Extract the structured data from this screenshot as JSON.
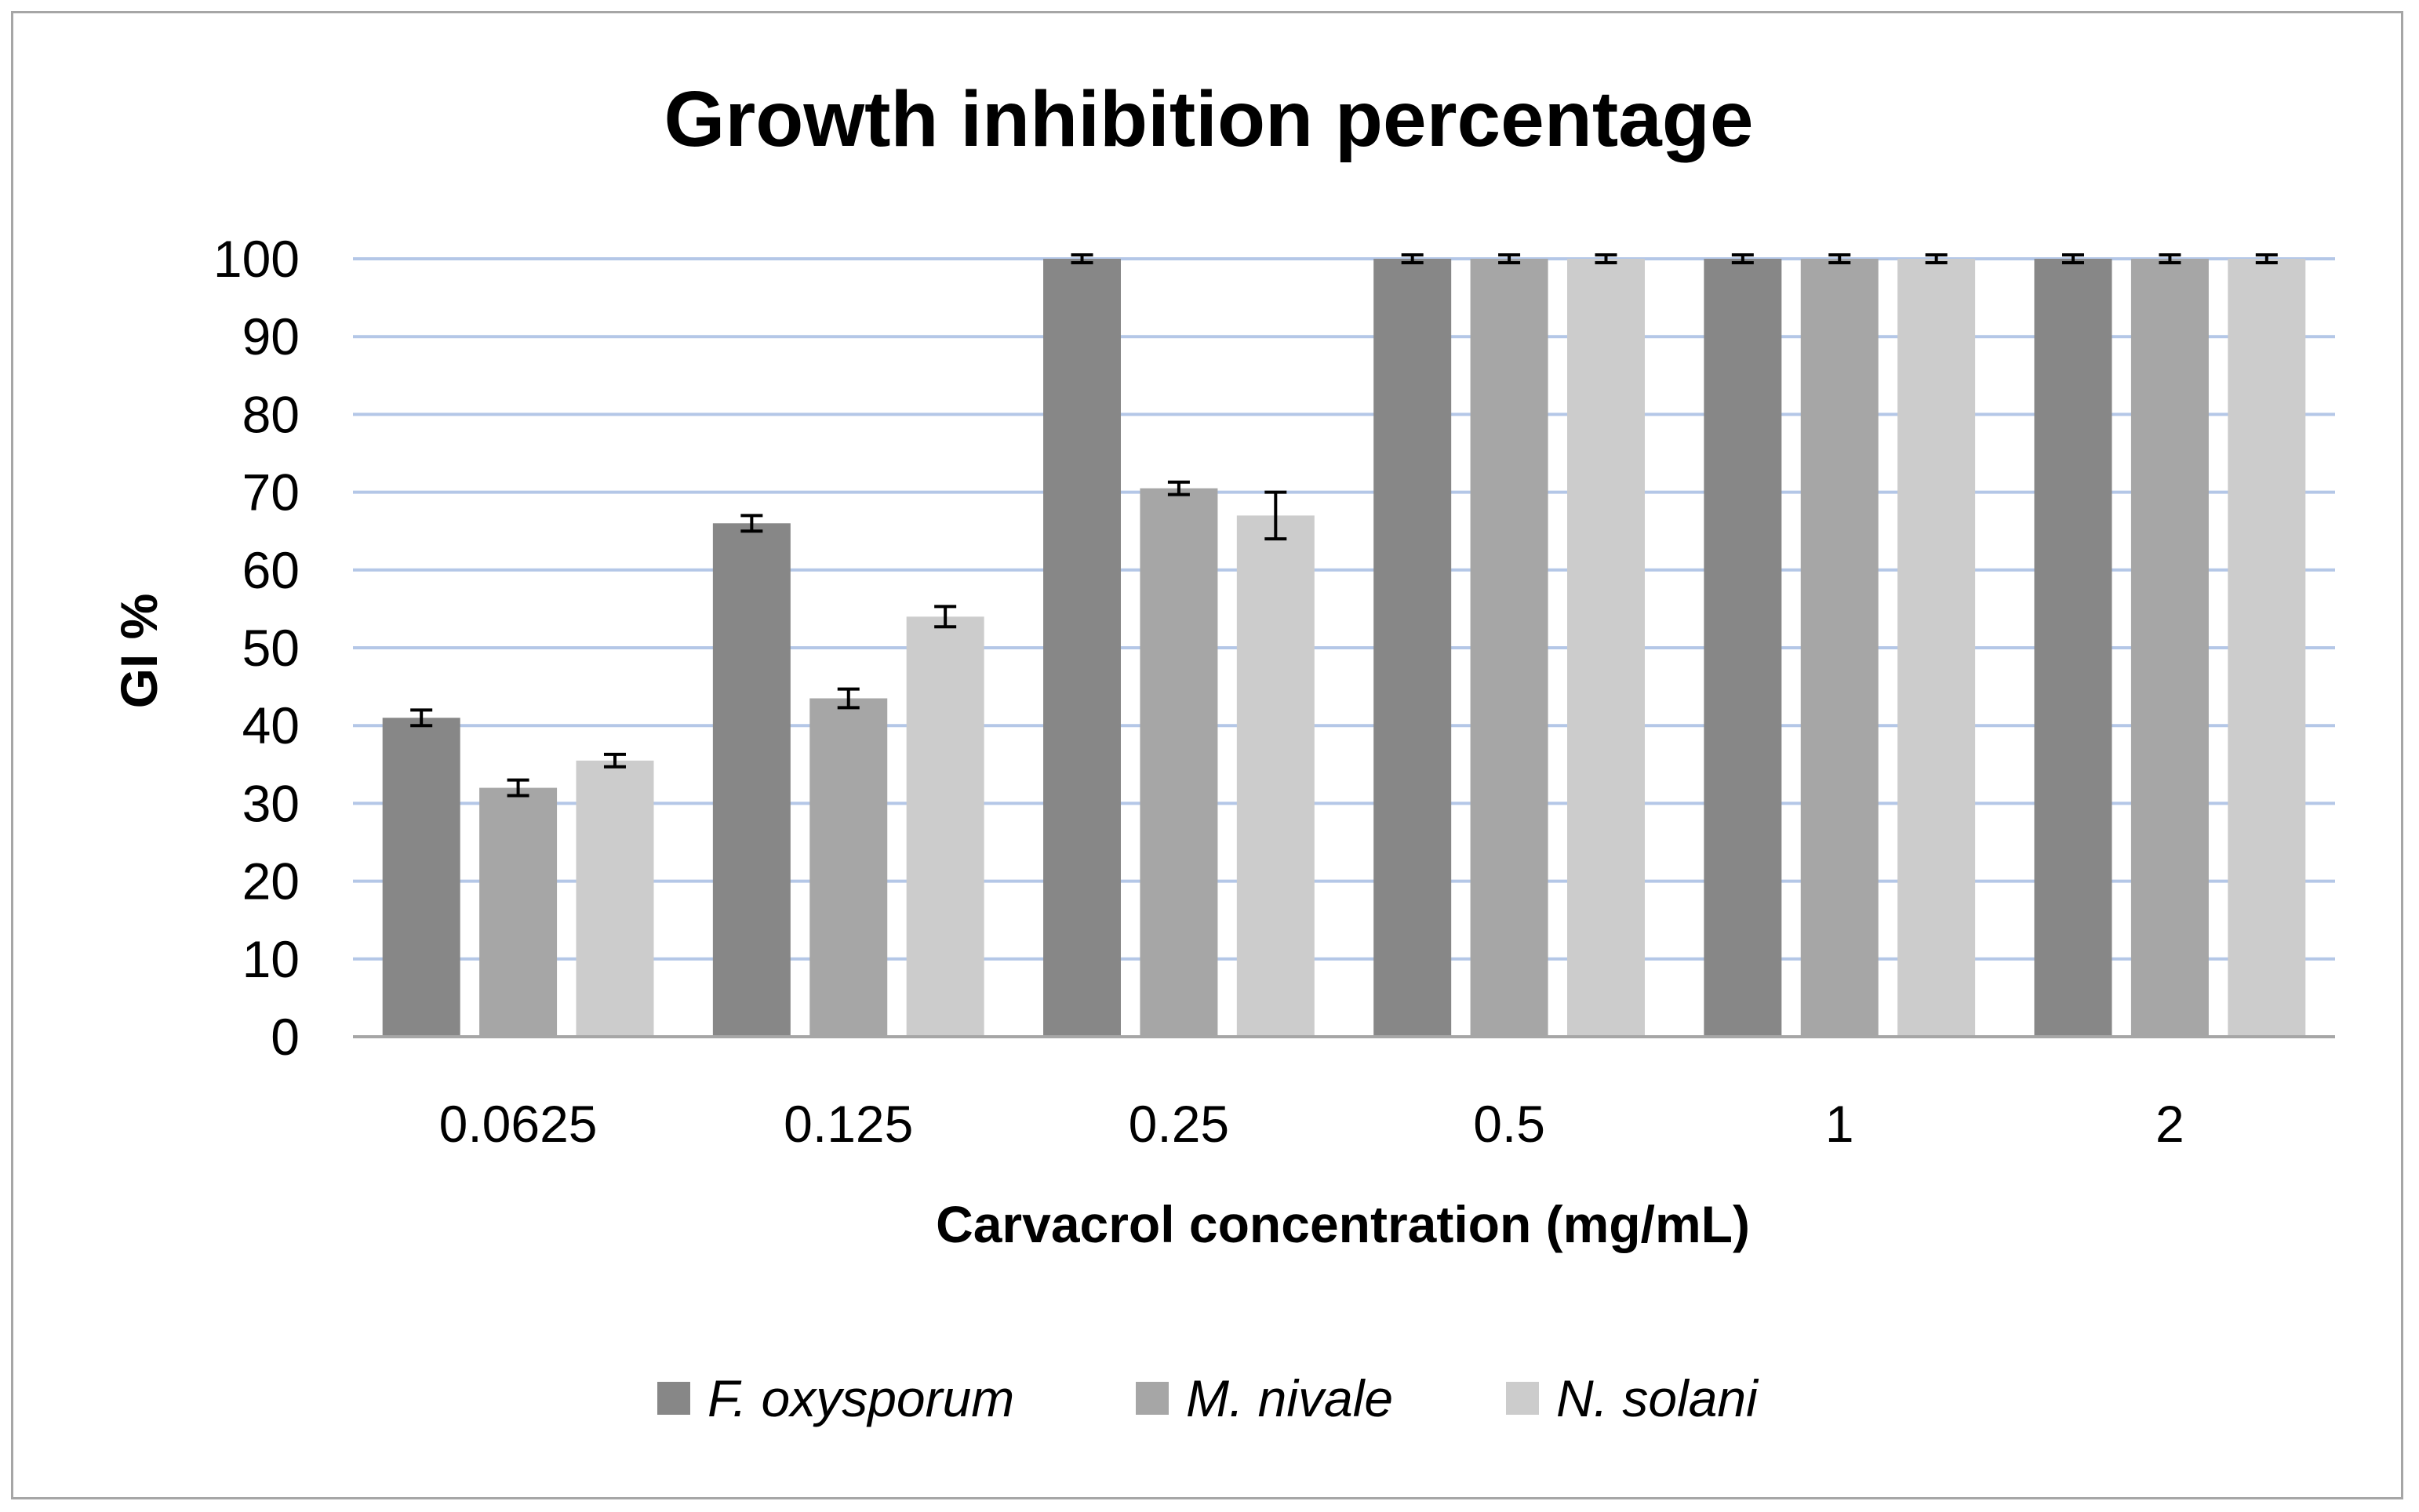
{
  "chart_data": {
    "type": "bar",
    "title": "Growth inhibition percentage",
    "xlabel": "Carvacrol concentration (mg/mL)",
    "ylabel": "GI %",
    "ylim": [
      0,
      100
    ],
    "ytick_step": 10,
    "yticks": [
      "0",
      "10",
      "20",
      "30",
      "40",
      "50",
      "60",
      "70",
      "80",
      "90",
      "100"
    ],
    "grid": true,
    "legend_position": "bottom",
    "categories": [
      "0.0625",
      "0.125",
      "0.25",
      "0.5",
      "1",
      "2"
    ],
    "series": [
      {
        "name": "F. oxysporum",
        "color": "#878787",
        "values": [
          41,
          66,
          100,
          100,
          100,
          100
        ],
        "errors": [
          1.0,
          1.0,
          0.5,
          0.5,
          0.5,
          0.5
        ]
      },
      {
        "name": "M. nivale",
        "color": "#a6a6a6",
        "values": [
          32,
          43.5,
          70.5,
          100,
          100,
          100
        ],
        "errors": [
          1.0,
          1.2,
          0.8,
          0.5,
          0.5,
          0.5
        ]
      },
      {
        "name": "N. solani",
        "color": "#cccccc",
        "values": [
          35.5,
          54,
          67,
          100,
          100,
          100
        ],
        "errors": [
          0.8,
          1.3,
          3.0,
          0.5,
          0.5,
          0.5
        ]
      }
    ],
    "colors": {
      "gridline": "#b4c7e7",
      "axis": "#a6a6a6",
      "frame": "#a6a6a6",
      "errorbar": "#000000"
    }
  }
}
